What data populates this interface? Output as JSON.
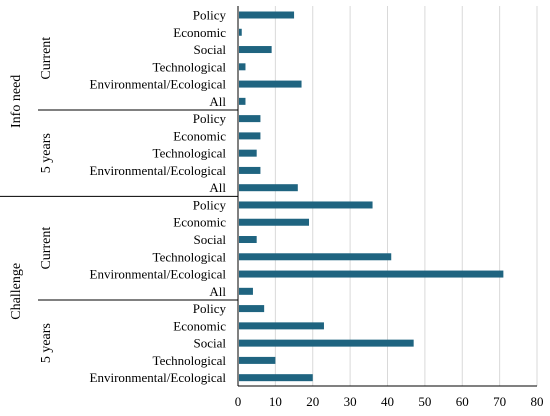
{
  "chart_data": {
    "type": "bar",
    "orientation": "horizontal",
    "xlim": [
      0,
      80
    ],
    "x_ticks": [
      0,
      10,
      20,
      30,
      40,
      50,
      60,
      70,
      80
    ],
    "grid": true,
    "bar_color": "#1f6480",
    "groups": [
      {
        "name": "Info need",
        "subgroups": [
          {
            "name": "Current",
            "categories": [
              "Policy",
              "Economic",
              "Social",
              "Technological",
              "Environmental/Ecological",
              "All"
            ],
            "values": [
              15,
              1,
              9,
              2,
              17,
              2
            ]
          },
          {
            "name": "5 years",
            "categories": [
              "Policy",
              "Economic",
              "Technological",
              "Environmental/Ecological",
              "All"
            ],
            "values": [
              6,
              6,
              5,
              6,
              16
            ]
          }
        ]
      },
      {
        "name": "Challenge",
        "subgroups": [
          {
            "name": "Current",
            "categories": [
              "Policy",
              "Economic",
              "Social",
              "Technological",
              "Environmental/Ecological",
              "All"
            ],
            "values": [
              36,
              19,
              5,
              41,
              71,
              4
            ]
          },
          {
            "name": "5 years",
            "categories": [
              "Policy",
              "Economic",
              "Social",
              "Technological",
              "Environmental/Ecological"
            ],
            "values": [
              7,
              23,
              47,
              10,
              20
            ]
          }
        ]
      }
    ]
  }
}
